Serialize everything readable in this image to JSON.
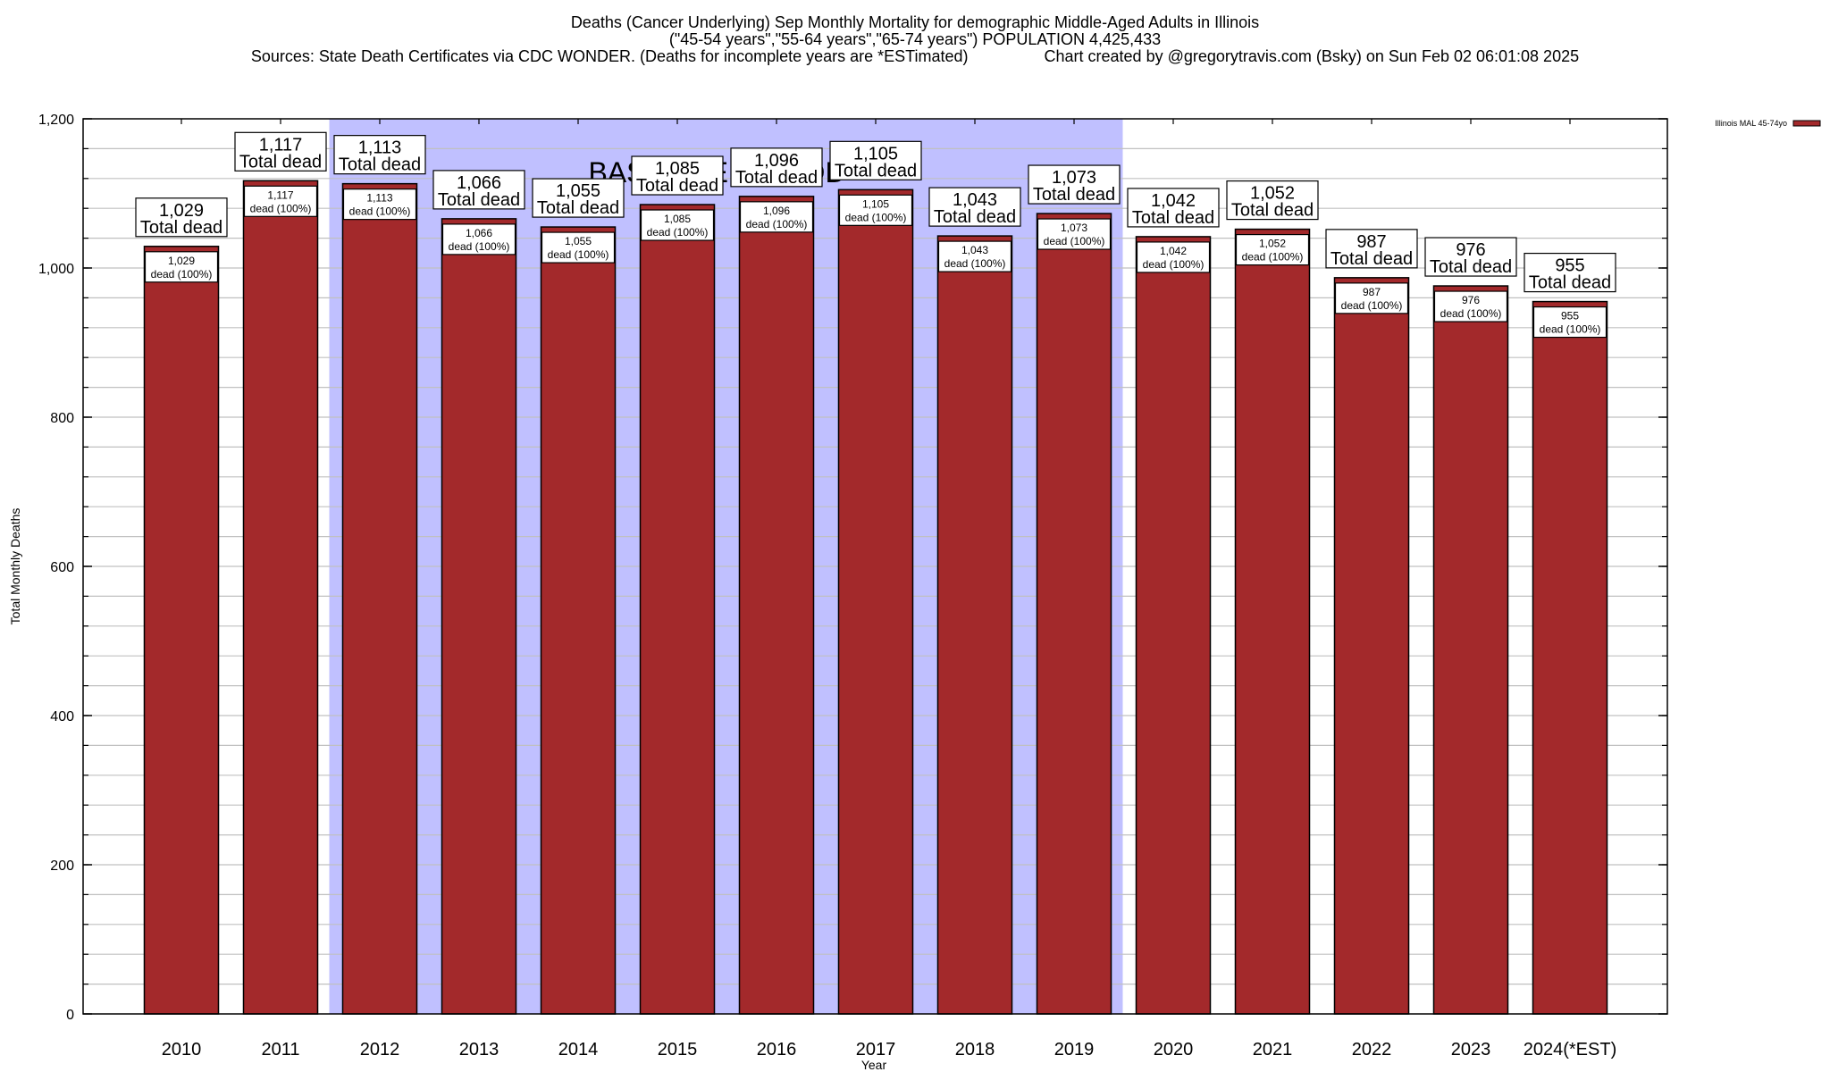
{
  "header": {
    "title_line1": "Deaths (Cancer Underlying) Sep Monthly Mortality for demographic Middle-Aged Adults in Illinois",
    "title_line2": "(\"45-54 years\",\"55-64 years\",\"65-74 years\") POPULATION 4,425,433",
    "title_line3": "Sources: State Death Certificates via CDC WONDER. (Deaths for incomplete years are *ESTimated)                 Chart created by @gregorytravis.com (Bsky) on Sun Feb 02 06:01:08 2025"
  },
  "colors": {
    "bar_fill": "#a3292b",
    "baseline_shade": "#c0c0ff",
    "grid": "#c0c0c0"
  },
  "chart_data": {
    "type": "bar",
    "title": "Deaths (Cancer Underlying) Sep Monthly Mortality for demographic Middle-Aged Adults in Illinois",
    "xlabel": "Year",
    "ylabel": "Total Monthly Deaths",
    "ylim": [
      0,
      1200
    ],
    "yticks": [
      0,
      200,
      400,
      600,
      800,
      1000,
      1200
    ],
    "ytick_labels": [
      "0",
      "200",
      "400",
      "600",
      "800",
      "1,000",
      "1,200"
    ],
    "grid": true,
    "legend": {
      "placement": "top-right-outside",
      "entries": [
        "Illinois MAL 45-74yo"
      ]
    },
    "categories": [
      "2010",
      "2011",
      "2012",
      "2013",
      "2014",
      "2015",
      "2016",
      "2017",
      "2018",
      "2019",
      "2020",
      "2021",
      "2022",
      "2023",
      "2024(*EST)"
    ],
    "series": [
      {
        "name": "Illinois MAL 45-74yo",
        "values": [
          1029,
          1117,
          1113,
          1066,
          1055,
          1085,
          1096,
          1105,
          1043,
          1073,
          1042,
          1052,
          987,
          976,
          955
        ]
      }
    ],
    "total_labels": [
      "1,029",
      "1,117",
      "1,113",
      "1,066",
      "1,055",
      "1,085",
      "1,096",
      "1,105",
      "1,043",
      "1,073",
      "1,042",
      "1,052",
      "987",
      "976",
      "955"
    ],
    "total_suffix": "Total dead",
    "inner_suffix": "dead (100%)",
    "annotations": [
      {
        "text": "BASELINE PERIOD",
        "type": "shaded-region",
        "from_category": "2012",
        "to_category": "2019"
      }
    ]
  }
}
